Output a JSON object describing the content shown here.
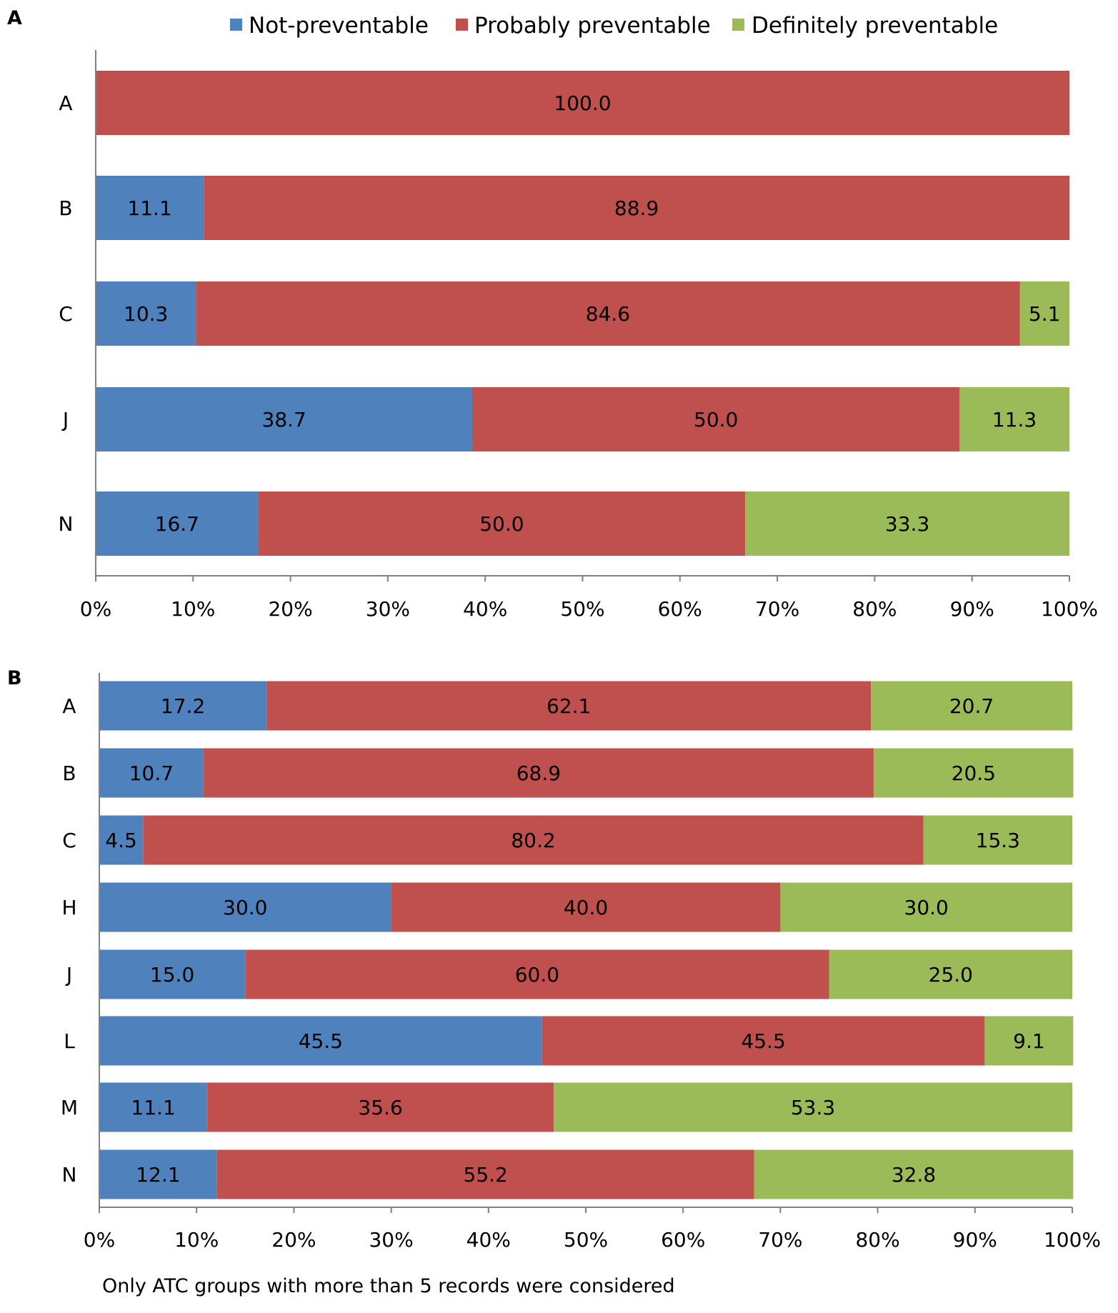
{
  "legend": [
    {
      "name": "Not-preventable",
      "color": "#4F81BD"
    },
    {
      "name": "Probably preventable",
      "color": "#C0504D"
    },
    {
      "name": "Definitely preventable",
      "color": "#9BBB59"
    }
  ],
  "note": "Only ATC groups with more than 5 records were considered",
  "chart_data": [
    {
      "type": "bar",
      "orientation": "horizontal",
      "stacked": true,
      "panel_label": "A",
      "categories": [
        "A",
        "B",
        "C",
        "J",
        "N"
      ],
      "series": [
        {
          "name": "Not-preventable",
          "values": [
            0,
            11.1,
            10.3,
            38.7,
            16.7
          ]
        },
        {
          "name": "Probably preventable",
          "values": [
            100.0,
            88.9,
            84.6,
            50.0,
            50.0
          ]
        },
        {
          "name": "Definitely preventable",
          "values": [
            0,
            0,
            5.1,
            11.3,
            33.3
          ]
        }
      ],
      "xticks": [
        "0%",
        "10%",
        "20%",
        "30%",
        "40%",
        "50%",
        "60%",
        "70%",
        "80%",
        "90%",
        "100%"
      ],
      "xlim": [
        0,
        100
      ],
      "xlabel": "",
      "ylabel": "",
      "legend_position": "top"
    },
    {
      "type": "bar",
      "orientation": "horizontal",
      "stacked": true,
      "panel_label": "B",
      "categories": [
        "A",
        "B",
        "C",
        "H",
        "J",
        "L",
        "M",
        "N"
      ],
      "series": [
        {
          "name": "Not-preventable",
          "values": [
            17.2,
            10.7,
            4.5,
            30.0,
            15.0,
            45.5,
            11.1,
            12.1
          ]
        },
        {
          "name": "Probably preventable",
          "values": [
            62.1,
            68.9,
            80.2,
            40.0,
            60.0,
            45.5,
            35.6,
            55.2
          ]
        },
        {
          "name": "Definitely preventable",
          "values": [
            20.7,
            20.5,
            15.3,
            30.0,
            25.0,
            9.1,
            53.3,
            32.8
          ]
        }
      ],
      "xticks": [
        "0%",
        "10%",
        "20%",
        "30%",
        "40%",
        "50%",
        "60%",
        "70%",
        "80%",
        "90%",
        "100%"
      ],
      "xlim": [
        0,
        100
      ],
      "xlabel": "",
      "ylabel": ""
    }
  ]
}
